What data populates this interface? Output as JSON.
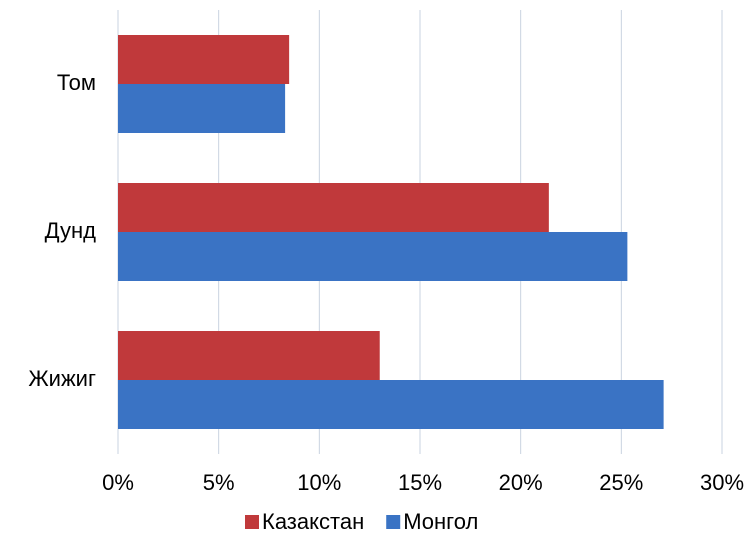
{
  "chart_data": {
    "type": "hbar",
    "categories": [
      "Том",
      "Дунд",
      "Жижиг"
    ],
    "series": [
      {
        "name": "Казакстан",
        "color": "#c0393b",
        "values": [
          8.5,
          21.4,
          13.0
        ]
      },
      {
        "name": "Монгол",
        "color": "#3a73c4",
        "values": [
          8.3,
          25.3,
          27.1
        ]
      }
    ],
    "xlim": [
      0,
      30
    ],
    "xticks": [
      {
        "value": 0,
        "label": "0%"
      },
      {
        "value": 5,
        "label": "5%"
      },
      {
        "value": 10,
        "label": "10%"
      },
      {
        "value": 15,
        "label": "15%"
      },
      {
        "value": 20,
        "label": "20%"
      },
      {
        "value": 25,
        "label": "25%"
      },
      {
        "value": 30,
        "label": "30%"
      }
    ],
    "grid": true,
    "legend": "bottom"
  }
}
